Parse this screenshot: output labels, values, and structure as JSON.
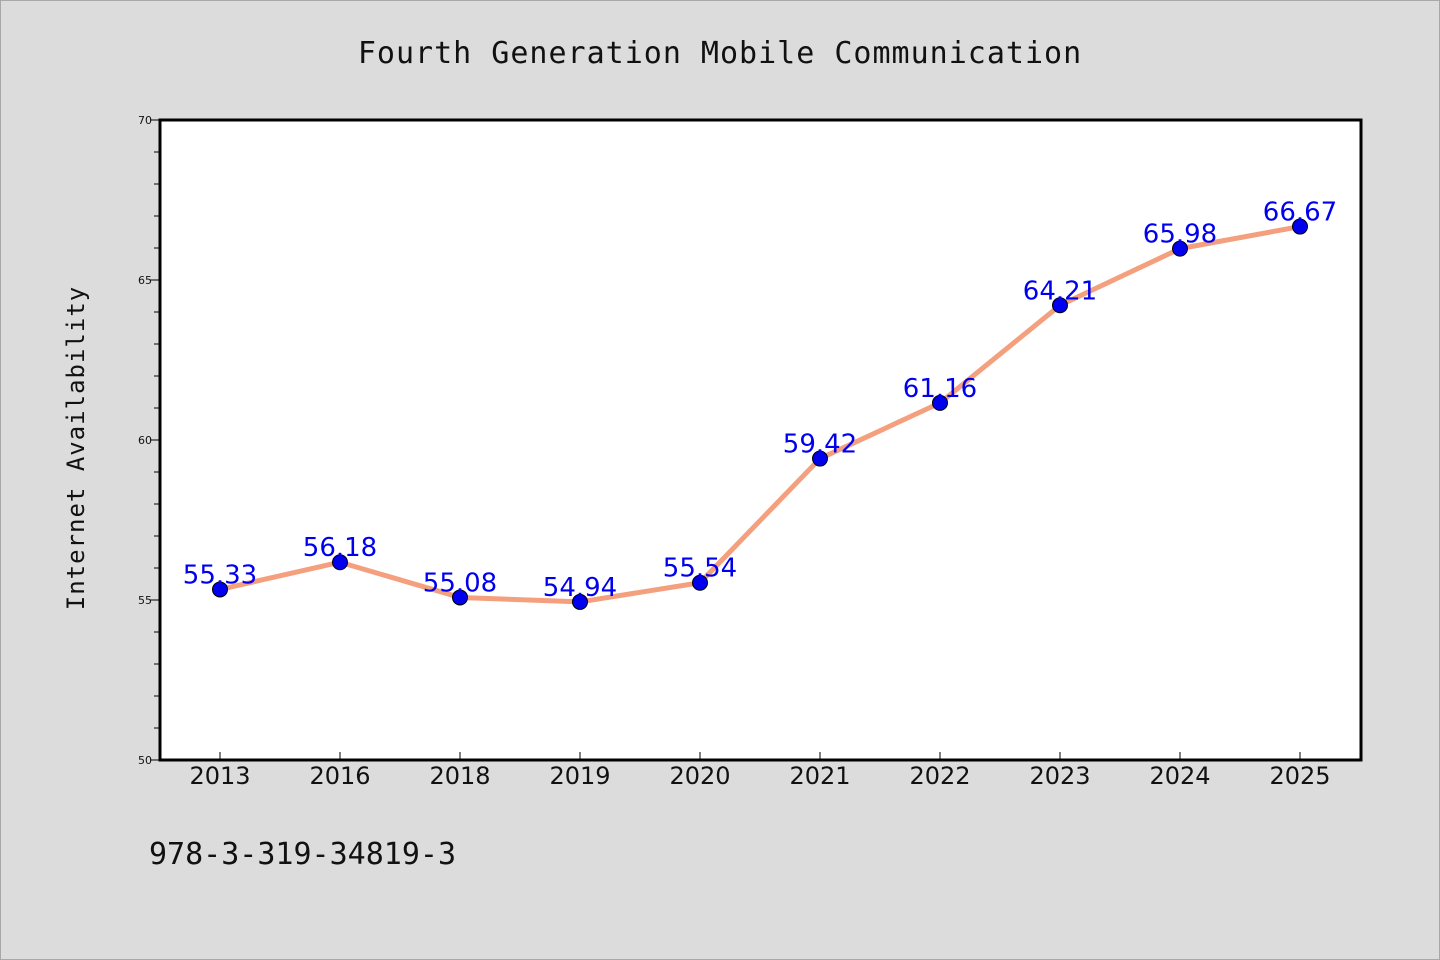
{
  "colors": {
    "background": "#dcdcdc",
    "plot_background": "#ffffff",
    "line": "#f4a07e",
    "marker": "#0000ee",
    "data_label": "#0000ee"
  },
  "footer": {
    "code": "978-3-319-34819-3"
  },
  "chart_data": {
    "type": "line",
    "title": "Fourth Generation Mobile Communication",
    "xlabel": "",
    "ylabel": "Internet Availability",
    "categories": [
      "2013",
      "2016",
      "2018",
      "2019",
      "2020",
      "2021",
      "2022",
      "2023",
      "2024",
      "2025"
    ],
    "series": [
      {
        "values": [
          55.33,
          56.18,
          55.08,
          54.94,
          55.54,
          59.42,
          61.16,
          64.21,
          65.98,
          66.67
        ]
      }
    ],
    "data_labels": [
      "55.33",
      "56.18",
      "55.08",
      "54.94",
      "55.54",
      "59.42",
      "61.16",
      "64.21",
      "65.98",
      "66.67"
    ],
    "ylim": [
      50,
      70
    ],
    "yticks": [
      "50",
      "55",
      "60",
      "65",
      "70"
    ],
    "grid": false,
    "legend": "none"
  }
}
